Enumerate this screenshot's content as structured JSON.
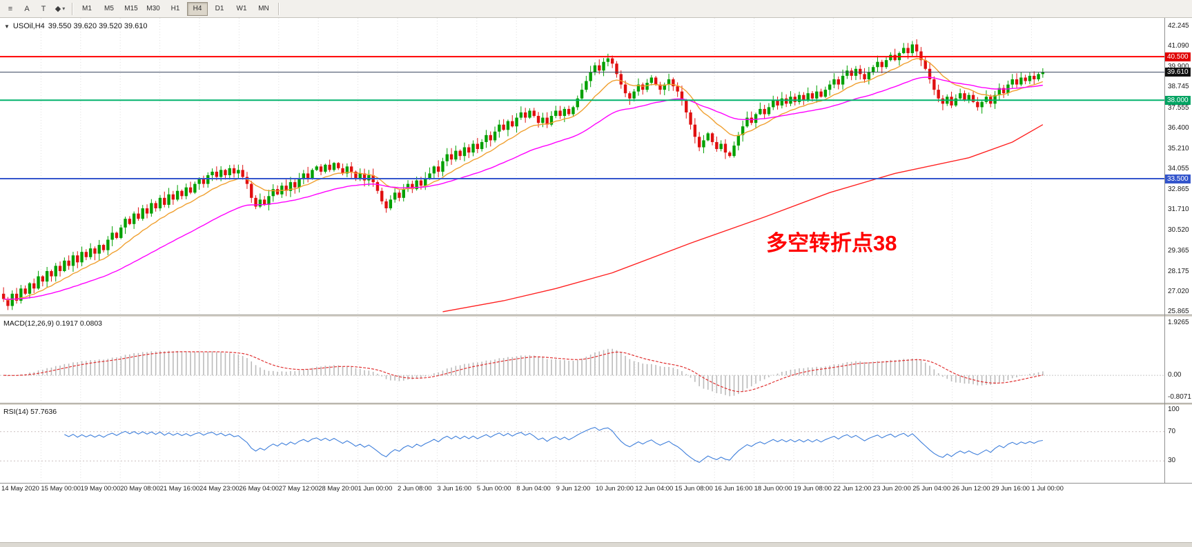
{
  "icons": {
    "chart_menu": "▼",
    "dropdown_arrow": "▾"
  },
  "toolbar": {
    "tools": [
      {
        "name": "chart-list-tool",
        "glyph": "≡"
      },
      {
        "name": "text-tool",
        "glyph": "A"
      },
      {
        "name": "label-tool",
        "glyph": "T"
      },
      {
        "name": "shapes-tool",
        "glyph": "◆",
        "has_dropdown": true
      }
    ],
    "timeframes": [
      "M1",
      "M5",
      "M15",
      "M30",
      "H1",
      "H4",
      "D1",
      "W1",
      "MN"
    ],
    "active_timeframe": "H4"
  },
  "chart": {
    "symbol": "USOil,H4",
    "ohlc": "39.550 39.620 39.520 39.610",
    "annotation": {
      "text": "多空转折点38",
      "color": "#FF0000"
    },
    "price_axis": {
      "max": 42.245,
      "min": 25.865,
      "labels": [
        "42.245",
        "41.090",
        "39.900",
        "38.745",
        "37.555",
        "36.400",
        "35.210",
        "34.055",
        "32.865",
        "31.710",
        "30.520",
        "29.365",
        "28.175",
        "27.020",
        "25.865"
      ]
    },
    "hlines": [
      {
        "price": 40.5,
        "color": "#FF0000",
        "width": 2,
        "badge": "40.500",
        "badge_bg": "#E00000"
      },
      {
        "price": 39.61,
        "color": "#36425C",
        "width": 1,
        "badge": "39.610",
        "badge_bg": "#111111"
      },
      {
        "price": 38.0,
        "color": "#00B26B",
        "width": 2,
        "badge": "38.000",
        "badge_bg": "#00A362"
      },
      {
        "price": 33.5,
        "color": "#3355CC",
        "width": 2,
        "badge": "33.500",
        "badge_bg": "#3355CC"
      }
    ],
    "colors": {
      "up": "#00A000",
      "down": "#E01010",
      "grid": "#dedede"
    },
    "moving_averages": [
      {
        "name": "ma-fast",
        "type": "ema",
        "period": 13,
        "color": "#F0A030"
      },
      {
        "name": "ma-mid",
        "type": "ema",
        "period": 40,
        "color": "#FF00FF"
      },
      {
        "name": "ma-slow",
        "type": "path",
        "color": "#FF2020",
        "anchors": [
          [
            101,
            25.87
          ],
          [
            115,
            26.5
          ],
          [
            127,
            27.2
          ],
          [
            140,
            28.1
          ],
          [
            158,
            29.8
          ],
          [
            175,
            31.3
          ],
          [
            190,
            32.7
          ],
          [
            205,
            33.8
          ],
          [
            222,
            34.7
          ],
          [
            232,
            35.6
          ],
          [
            240,
            36.6
          ]
        ]
      }
    ]
  },
  "chart_data": {
    "type": "candlestick",
    "symbol": "USOil",
    "timeframe": "H4",
    "first_open": 26.9,
    "last_bar": {
      "open": 39.55,
      "high": 39.62,
      "low": 39.52,
      "close": 39.61
    },
    "closes": [
      26.6,
      26.2,
      26.9,
      26.5,
      27.2,
      26.9,
      27.5,
      27.2,
      27.9,
      27.6,
      28.2,
      27.9,
      28.5,
      28.2,
      28.8,
      28.5,
      29.1,
      28.7,
      29.3,
      29.0,
      29.5,
      29.2,
      29.7,
      29.4,
      30.0,
      30.4,
      30.1,
      30.7,
      31.2,
      30.9,
      31.5,
      31.2,
      31.8,
      31.5,
      32.1,
      31.8,
      32.4,
      32.0,
      32.6,
      32.3,
      32.8,
      32.5,
      33.0,
      32.7,
      33.2,
      33.5,
      33.2,
      33.7,
      33.9,
      33.6,
      34.0,
      33.7,
      34.1,
      33.8,
      34.0,
      33.6,
      33.2,
      32.4,
      31.9,
      32.3,
      32.0,
      32.5,
      32.9,
      32.6,
      33.1,
      32.8,
      33.3,
      33.0,
      33.5,
      33.8,
      33.5,
      34.0,
      34.2,
      33.9,
      34.3,
      34.0,
      34.4,
      34.1,
      33.8,
      34.2,
      33.9,
      33.5,
      33.8,
      33.4,
      33.7,
      33.3,
      32.8,
      32.2,
      31.8,
      32.3,
      32.7,
      32.4,
      32.9,
      33.2,
      32.9,
      33.4,
      33.1,
      33.5,
      33.8,
      34.2,
      33.9,
      34.5,
      34.9,
      34.6,
      35.1,
      34.8,
      35.3,
      35.0,
      35.5,
      35.2,
      35.6,
      36.0,
      35.7,
      36.2,
      36.6,
      36.3,
      36.8,
      36.5,
      37.0,
      37.3,
      37.0,
      37.4,
      37.1,
      36.7,
      37.0,
      36.6,
      37.1,
      37.4,
      37.1,
      37.5,
      37.2,
      37.6,
      38.1,
      38.6,
      39.1,
      39.6,
      40.0,
      39.7,
      40.2,
      40.4,
      40.1,
      39.5,
      38.9,
      38.4,
      38.1,
      38.5,
      38.9,
      38.6,
      39.0,
      39.3,
      38.9,
      38.6,
      38.9,
      39.2,
      38.8,
      38.5,
      38.0,
      37.3,
      36.6,
      35.9,
      35.3,
      35.7,
      36.1,
      35.6,
      35.2,
      35.5,
      35.0,
      34.8,
      35.4,
      36.0,
      36.5,
      37.0,
      36.7,
      37.2,
      37.5,
      37.2,
      37.6,
      38.0,
      37.7,
      38.1,
      37.8,
      38.2,
      37.9,
      38.3,
      38.0,
      38.4,
      38.1,
      38.5,
      38.2,
      38.6,
      38.9,
      39.2,
      38.9,
      39.4,
      39.7,
      39.4,
      39.8,
      39.5,
      39.2,
      39.6,
      39.9,
      40.2,
      39.9,
      40.3,
      40.6,
      40.3,
      40.7,
      41.0,
      40.7,
      41.2,
      40.8,
      40.3,
      39.8,
      39.2,
      38.6,
      38.1,
      37.8,
      38.2,
      37.7,
      38.1,
      38.4,
      38.0,
      38.3,
      37.9,
      37.6,
      37.9,
      38.2,
      37.8,
      38.3,
      38.7,
      38.4,
      38.9,
      39.2,
      38.9,
      39.3,
      39.1,
      39.4,
      39.2,
      39.5,
      39.61
    ]
  },
  "macd": {
    "label": "MACD(12,26,9) 0.1917 0.0803",
    "params": [
      12,
      26,
      9
    ],
    "max": 1.9265,
    "min": -0.8071,
    "axis": [
      "1.9265",
      "0.00",
      "-0.8071"
    ],
    "axis_values": [
      1.9265,
      0,
      -0.8071
    ],
    "histogram_color": "#bbbbbb",
    "signal_color": "#E03030"
  },
  "rsi": {
    "label": "RSI(14) 57.7636",
    "period": 14,
    "levels": [
      70,
      30
    ],
    "axis": [
      "100",
      "70",
      "30"
    ],
    "axis_values": [
      100,
      70,
      30
    ],
    "line_color": "#3D7EDB",
    "level_color": "#C9BDBD"
  },
  "time_axis": {
    "labels": [
      "14 May 2020",
      "15 May 00:00",
      "19 May 00:00",
      "20 May 08:00",
      "21 May 16:00",
      "24 May 23:00",
      "26 May 04:00",
      "27 May 12:00",
      "28 May 20:00",
      "1 Jun 00:00",
      "2 Jun 08:00",
      "3 Jun 16:00",
      "5 Jun 00:00",
      "8 Jun 04:00",
      "9 Jun 12:00",
      "10 Jun 20:00",
      "12 Jun 04:00",
      "15 Jun 08:00",
      "16 Jun 16:00",
      "18 Jun 00:00",
      "19 Jun 08:00",
      "22 Jun 12:00",
      "23 Jun 20:00",
      "25 Jun 04:00",
      "26 Jun 12:00",
      "29 Jun 16:00",
      "1 Jul 00:00"
    ]
  }
}
